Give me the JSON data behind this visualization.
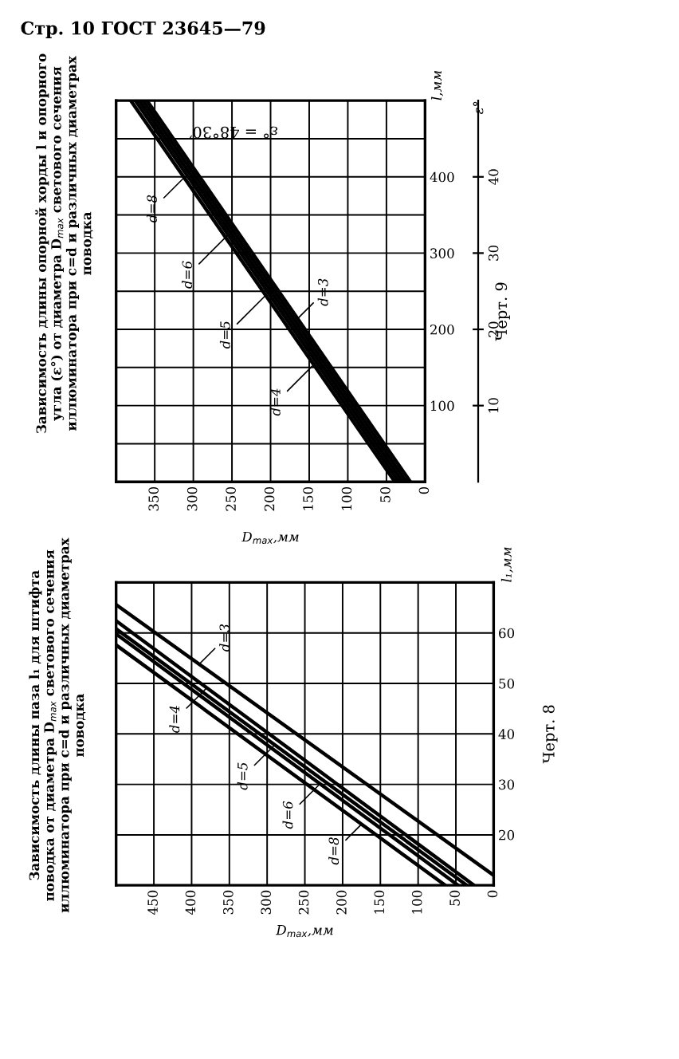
{
  "chart_data": [
    {
      "type": "line",
      "title": "Зависимость длины паза l₁ для штифта\nповодка от диаметра D$_{max}$ светового сечения\nиллюминатора при c=d и различных диаметрах\nповодка",
      "xlabel": "D$_{max}$,мм",
      "ylabel": "l₁,мм",
      "xlim": [
        500,
        0
      ],
      "xticks": [
        0,
        50,
        100,
        150,
        200,
        250,
        300,
        350,
        400,
        450
      ],
      "ylim": [
        10,
        70
      ],
      "yticks": [
        20,
        30,
        40,
        50,
        60
      ],
      "grid": true,
      "legend": false,
      "marker": "none",
      "line_style": "solid",
      "series": [
        {
          "color": "#000000",
          "x": [
            500,
            0
          ],
          "values": [
            65.6,
            12
          ]
        },
        {
          "color": "#000000",
          "x": [
            500,
            26
          ],
          "values": [
            62.4,
            10
          ]
        },
        {
          "color": "#000000",
          "x": [
            500,
            35.5
          ],
          "values": [
            60.8,
            10
          ]
        },
        {
          "color": "#000000",
          "x": [
            500,
            47
          ],
          "values": [
            59.8,
            10
          ]
        },
        {
          "color": "#000000",
          "x": [
            500,
            64
          ],
          "values": [
            57.6,
            10
          ]
        }
      ],
      "annotations": [
        "Стр. 10 ГОСТ 23645—79",
        "Черт. 8",
        {
          "text": "d=3",
          "x": 390,
          "y": 53.8
        },
        {
          "text": "d=4",
          "x": 380,
          "y": 49.1
        },
        {
          "text": "d=5",
          "x": 290,
          "y": 37.8
        },
        {
          "text": "d=6",
          "x": 230,
          "y": 30.1
        },
        {
          "text": "d=8",
          "x": 175,
          "y": 22.1
        }
      ]
    },
    {
      "type": "line",
      "title": "Зависимость длины опорной хорды l и опорного\nугла (ε°) от диаметра D$_{max}$ светового сечения\nиллюминатора при c=d и различных диаметрах\nповодка",
      "xlabel": "D$_{max}$,мм",
      "ylabel": "l,мм",
      "y2label": "ε°",
      "xlim": [
        400,
        0
      ],
      "xticks": [
        0,
        50,
        100,
        150,
        200,
        250,
        300,
        350
      ],
      "ylim": [
        0,
        500
      ],
      "yticks": [
        {
          "value": 50,
          "label": null
        },
        100,
        {
          "value": 150,
          "label": null
        },
        200,
        {
          "value": 250,
          "label": null
        },
        300,
        {
          "value": 350,
          "label": null
        },
        400,
        {
          "value": 450,
          "label": null
        }
      ],
      "y2lim": [
        0,
        50
      ],
      "y2ticks": [
        10,
        20,
        30,
        40
      ],
      "grid": true,
      "legend": false,
      "marker": "none",
      "line_style": "solid",
      "series": [
        {
          "color": "#000000",
          "x": [
            19,
            360
          ],
          "values": [
            0,
            500
          ]
        },
        {
          "color": "#000000",
          "x": [
            24,
            365
          ],
          "values": [
            0,
            500
          ]
        },
        {
          "color": "#000000",
          "x": [
            29,
            370
          ],
          "values": [
            0,
            500
          ]
        },
        {
          "color": "#000000",
          "x": [
            34,
            375
          ],
          "values": [
            0,
            500
          ]
        },
        {
          "color": "#000000",
          "x": [
            39,
            381
          ],
          "values": [
            0,
            500
          ]
        }
      ],
      "annotations": [
        "ε° = 48°30′",
        "Черт. 9",
        {
          "text": "d=3",
          "x": 165,
          "y": 214
        },
        {
          "text": "d=4",
          "x": 135,
          "y": 163
        },
        {
          "text": "d=5",
          "x": 200,
          "y": 251
        },
        {
          "text": "d=6",
          "x": 255,
          "y": 324
        },
        {
          "text": "d=8",
          "x": 312,
          "y": 399
        }
      ]
    }
  ]
}
